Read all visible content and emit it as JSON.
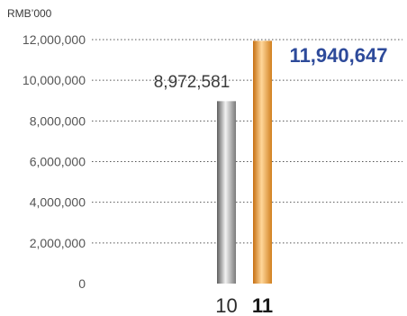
{
  "chart_data": {
    "type": "bar",
    "unit_label": "RMB’000",
    "categories": [
      "10",
      "11"
    ],
    "values": [
      8972581,
      11940647
    ],
    "data_labels": [
      "8,972,581",
      "11,940,647"
    ],
    "ylim": [
      0,
      12000000
    ],
    "yticks": [
      0,
      2000000,
      4000000,
      6000000,
      8000000,
      10000000,
      12000000
    ],
    "ytick_labels": [
      "0",
      "2,000,000",
      "4,000,000",
      "6,000,000",
      "8,000,000",
      "10,000,000",
      "12,000,000"
    ],
    "grid": true,
    "highlight_index": 1,
    "bar_colors": [
      "#9a9a9a",
      "#e69a3a"
    ],
    "highlight_label_color": "#2d4a9a"
  }
}
